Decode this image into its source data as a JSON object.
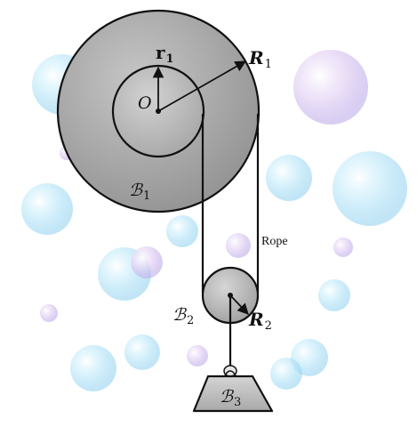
{
  "labels": {
    "r1": "r",
    "r1_sub": "1",
    "R1": "R",
    "R1_sub": "1",
    "O": "O",
    "B1": "ℬ",
    "B1_sub": "1",
    "rope": "Rope",
    "B2": "ℬ",
    "B2_sub": "2",
    "R2": "R",
    "R2_sub": "2",
    "B3": "ℬ",
    "B3_sub": "3"
  },
  "colors": {
    "outer_disk": "#a7a7a7",
    "inner_disk": "#b4b4b4",
    "pulley": "#b8b8b8",
    "block": "#c2c2c2",
    "line": "#111111",
    "bubble": "#a9dcf3"
  }
}
